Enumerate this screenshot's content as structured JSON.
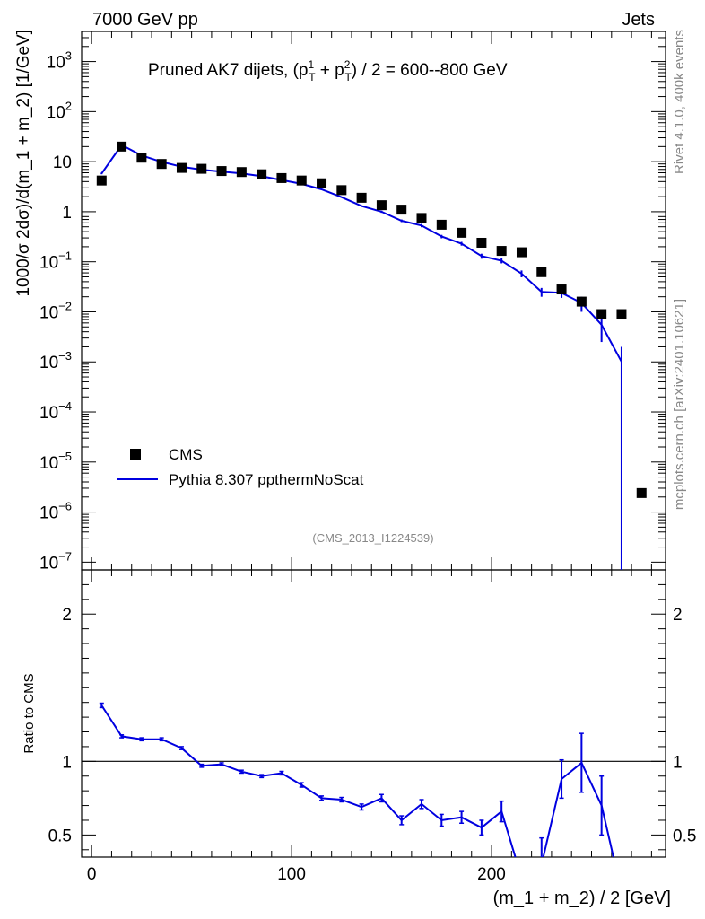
{
  "header": {
    "left": "7000 GeV pp",
    "right": "Jets"
  },
  "side_labels": {
    "rivet": "Rivet 4.1.0,  400k events",
    "mcplots": "mcplots.cern.ch [arXiv:2401.10621]"
  },
  "watermark": "(CMS_2013_I1224539)",
  "chart_data": [
    {
      "type": "scatter",
      "panel": "main",
      "title_parts": {
        "prefix": "Pruned AK7 dijets, (p",
        "sup1": "1",
        "sub": "T",
        "mid": " + p",
        "sup2": "2",
        "suffix": ") / 2 = 600--800 GeV"
      },
      "ylabel": "1000/σ   2dσ)/d(m_1 + m_2) [1/GeV]",
      "yscale": "log",
      "ylim": [
        7e-08,
        4000
      ],
      "xlim": [
        -5,
        287
      ],
      "ytick_labels": [
        {
          "base": "10",
          "exp": "3",
          "value": 1000
        },
        {
          "base": "10",
          "exp": "2",
          "value": 100
        },
        {
          "base": "10",
          "exp": "",
          "value": 10
        },
        {
          "base": "1",
          "exp": "",
          "value": 1
        },
        {
          "base": "10",
          "exp": "−1",
          "value": 0.1
        },
        {
          "base": "10",
          "exp": "−2",
          "value": 0.01
        },
        {
          "base": "10",
          "exp": "−3",
          "value": 0.001
        },
        {
          "base": "10",
          "exp": "−4",
          "value": 0.0001
        },
        {
          "base": "10",
          "exp": "−5",
          "value": 1e-05
        },
        {
          "base": "10",
          "exp": "−6",
          "value": 1e-06
        },
        {
          "base": "10",
          "exp": "−7",
          "value": 1e-07
        }
      ],
      "legend": {
        "position": "lower-left",
        "entries": [
          "CMS",
          "Pythia 8.307 ppthermNoScat"
        ]
      },
      "series": [
        {
          "name": "CMS",
          "color": "#000000",
          "marker": "square",
          "x": [
            5,
            15,
            25,
            35,
            45,
            55,
            65,
            75,
            85,
            95,
            105,
            115,
            125,
            135,
            145,
            155,
            165,
            175,
            185,
            195,
            205,
            215,
            225,
            235,
            245,
            255,
            265,
            275
          ],
          "y": [
            4.2,
            20,
            12,
            9,
            7.5,
            7.2,
            6.5,
            6.2,
            5.6,
            4.7,
            4.2,
            3.7,
            2.7,
            1.9,
            1.35,
            1.1,
            0.75,
            0.55,
            0.38,
            0.24,
            0.165,
            0.155,
            0.062,
            0.028,
            0.016,
            0.009,
            0.009,
            2.4e-06
          ]
        },
        {
          "name": "Pythia 8.307 ppthermNoScat",
          "color": "#0000e0",
          "marker": "line",
          "x": [
            5,
            15,
            25,
            35,
            45,
            55,
            65,
            75,
            85,
            95,
            105,
            115,
            125,
            135,
            145,
            155,
            165,
            175,
            185,
            195,
            205,
            215,
            225,
            235,
            245,
            255,
            265
          ],
          "y": [
            5.8,
            21.5,
            13.3,
            9.9,
            7.9,
            6.9,
            6.3,
            5.8,
            5.1,
            4.3,
            3.6,
            2.8,
            1.95,
            1.3,
            1.0,
            0.66,
            0.53,
            0.32,
            0.23,
            0.13,
            0.105,
            0.058,
            0.025,
            0.024,
            0.015,
            0.0055,
            0.001
          ],
          "err": [
            0.2,
            0.4,
            0.3,
            0.2,
            0.15,
            0.15,
            0.12,
            0.12,
            0.1,
            0.1,
            0.1,
            0.08,
            0.06,
            0.05,
            0.05,
            0.04,
            0.04,
            0.025,
            0.02,
            0.015,
            0.012,
            0.009,
            0.005,
            0.005,
            0.005,
            0.003,
            0.001
          ]
        }
      ]
    },
    {
      "type": "line",
      "panel": "ratio",
      "ylabel": "Ratio to CMS",
      "xlabel": "(m_1 + m_2) / 2 [GeV]",
      "ylim": [
        0.35,
        2.3
      ],
      "xlim": [
        -5,
        287
      ],
      "xtick_labels": [
        {
          "value": 0,
          "label": "0"
        },
        {
          "value": 100,
          "label": "100"
        },
        {
          "value": 200,
          "label": "200"
        }
      ],
      "ytick_labels": [
        {
          "value": 2,
          "label": "2"
        },
        {
          "value": 1,
          "label": "1"
        },
        {
          "value": 0.5,
          "label": "0.5"
        }
      ],
      "reference_line": 1,
      "series": [
        {
          "name": "Pythia 8.307 ppthermNoScat / CMS",
          "color": "#0000e0",
          "x": [
            5,
            15,
            25,
            35,
            45,
            55,
            65,
            75,
            85,
            95,
            105,
            115,
            125,
            135,
            145,
            155,
            165,
            175,
            185,
            195,
            205,
            215,
            225,
            235,
            245,
            255,
            265
          ],
          "y": [
            1.38,
            1.17,
            1.15,
            1.15,
            1.09,
            0.97,
            0.98,
            0.93,
            0.9,
            0.92,
            0.84,
            0.75,
            0.74,
            0.69,
            0.75,
            0.6,
            0.71,
            0.6,
            0.62,
            0.55,
            0.66,
            0.21,
            0.3,
            0.88,
            0.99,
            0.7,
            0.11
          ],
          "err": [
            0.015,
            0.01,
            0.01,
            0.01,
            0.01,
            0.01,
            0.01,
            0.01,
            0.01,
            0.012,
            0.015,
            0.015,
            0.015,
            0.02,
            0.025,
            0.03,
            0.03,
            0.04,
            0.04,
            0.05,
            0.07,
            0.1,
            0.18,
            0.13,
            0.2,
            0.2,
            0.1
          ]
        }
      ]
    }
  ]
}
